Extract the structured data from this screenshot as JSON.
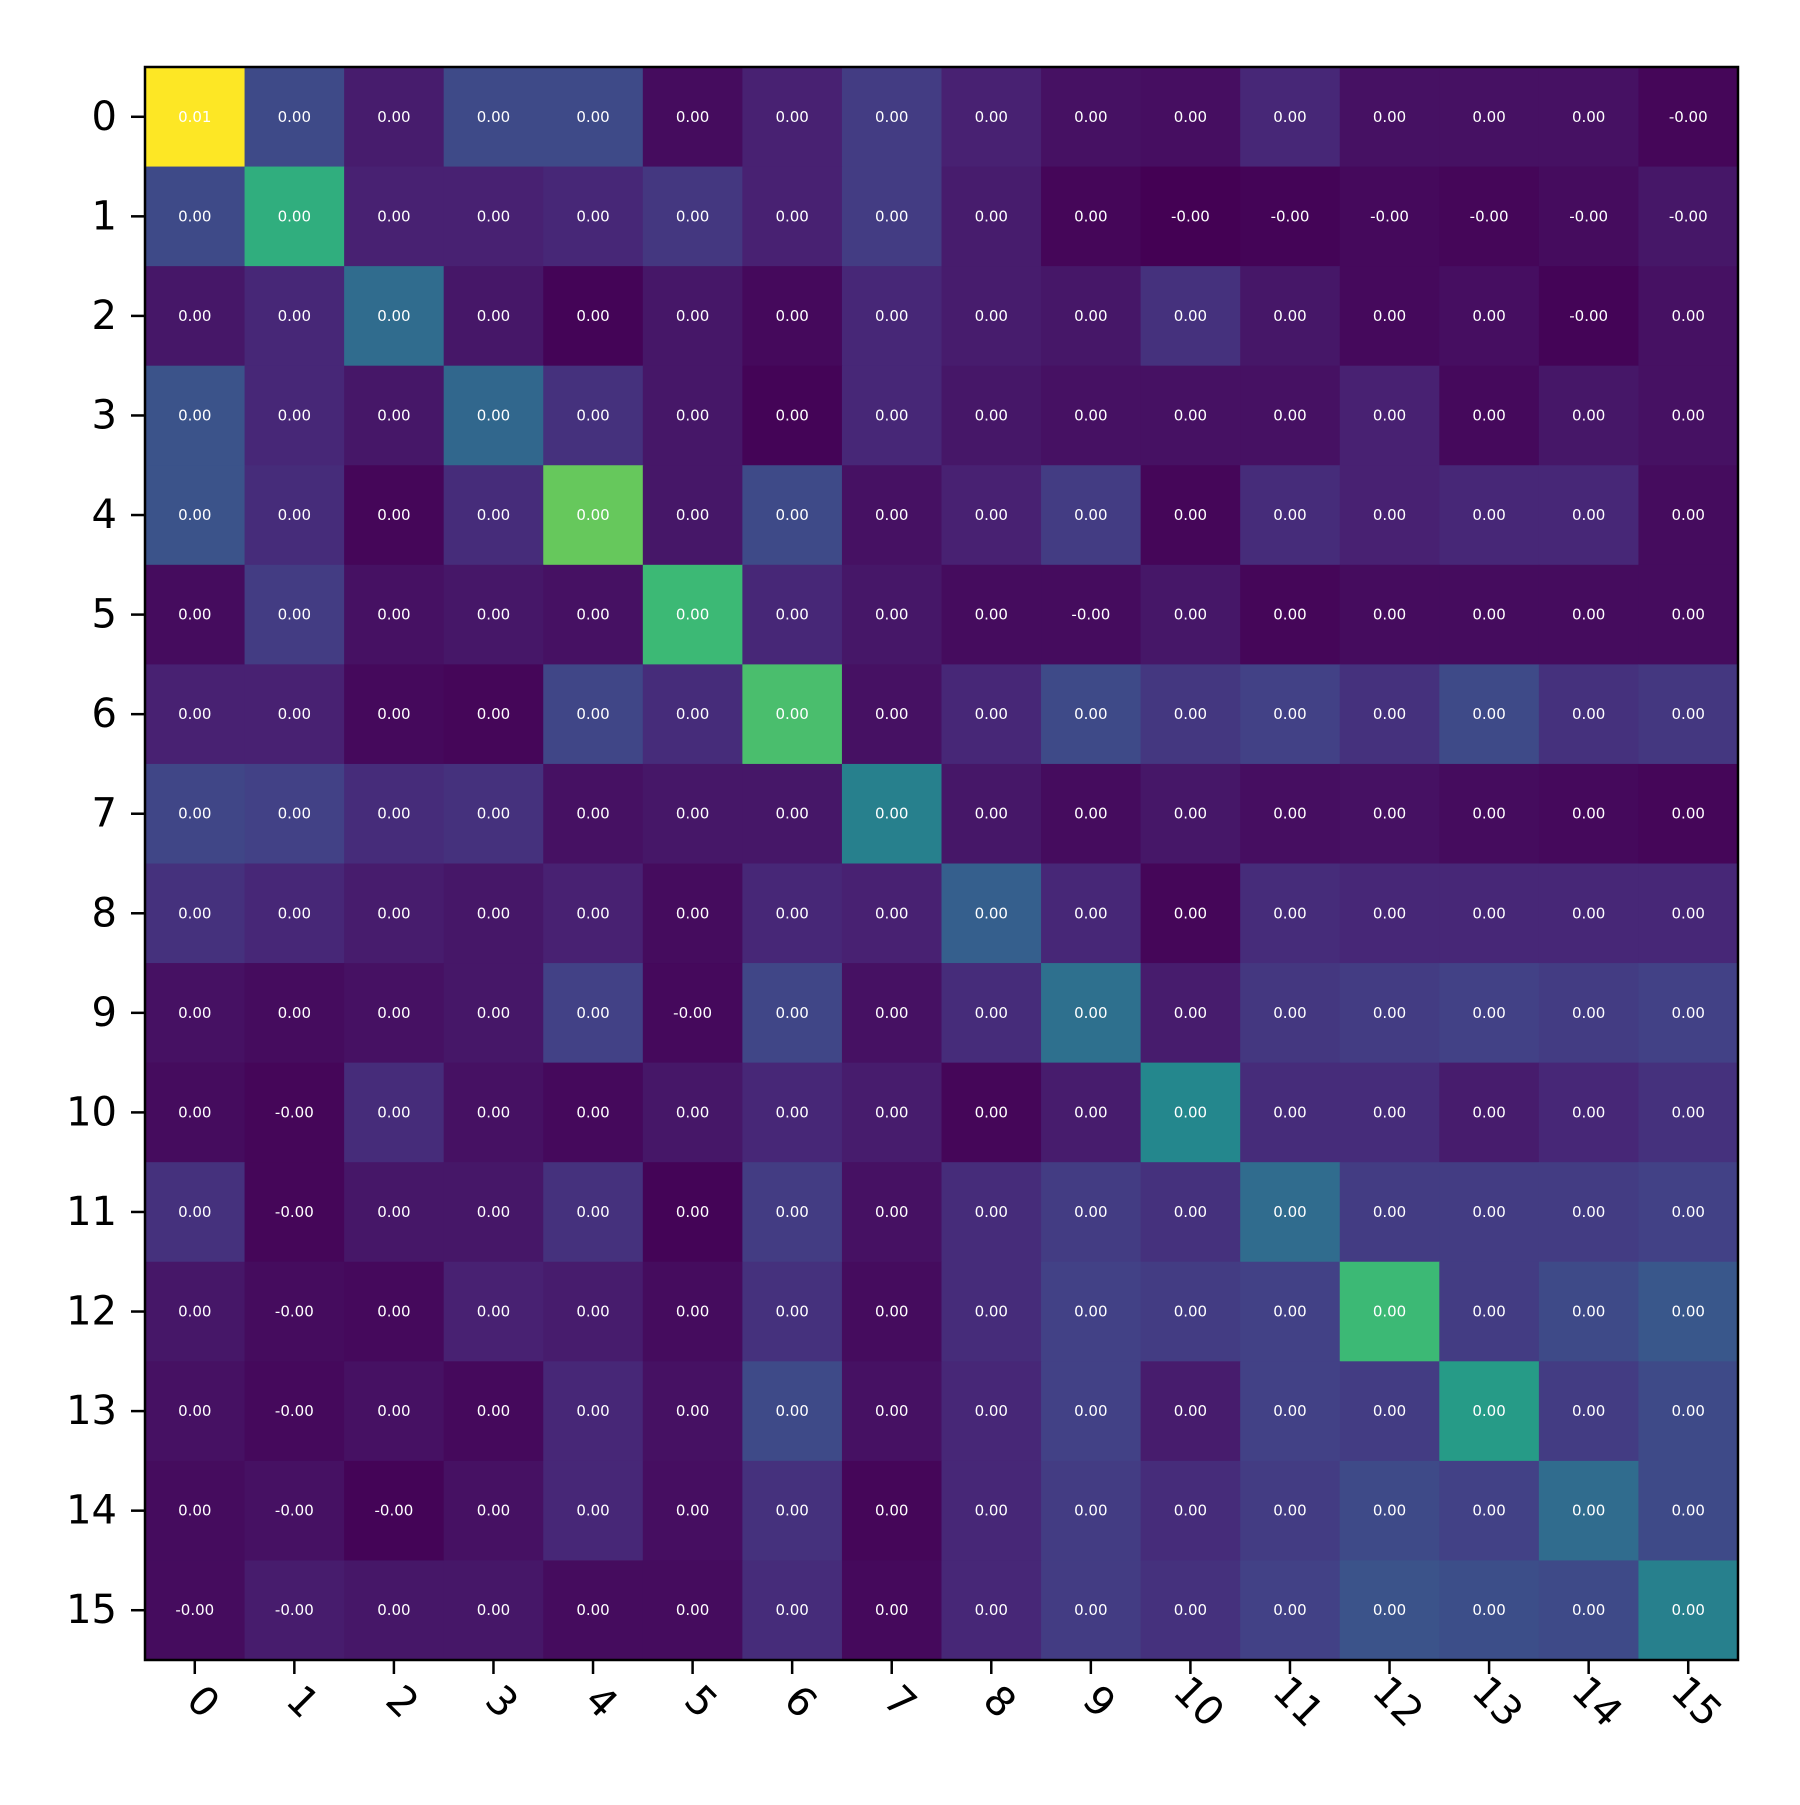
{
  "chart_data": {
    "type": "heatmap",
    "title": "",
    "xlabel": "",
    "ylabel": "",
    "x_tick_labels": [
      "0",
      "1",
      "2",
      "3",
      "4",
      "5",
      "6",
      "7",
      "8",
      "9",
      "10",
      "11",
      "12",
      "13",
      "14",
      "15"
    ],
    "y_tick_labels": [
      "0",
      "1",
      "2",
      "3",
      "4",
      "5",
      "6",
      "7",
      "8",
      "9",
      "10",
      "11",
      "12",
      "13",
      "14",
      "15"
    ],
    "x_tick_rotation_deg": 45,
    "colormap": "viridis",
    "colorbar": false,
    "value_range": [
      0,
      1
    ],
    "cell_text": [
      [
        "0.01",
        "0.00",
        "0.00",
        "0.00",
        "0.00",
        "0.00",
        "0.00",
        "0.00",
        "0.00",
        "0.00",
        "0.00",
        "0.00",
        "0.00",
        "0.00",
        "0.00",
        "-0.00"
      ],
      [
        "0.00",
        "0.00",
        "0.00",
        "0.00",
        "0.00",
        "0.00",
        "0.00",
        "0.00",
        "0.00",
        "0.00",
        "-0.00",
        "-0.00",
        "-0.00",
        "-0.00",
        "-0.00",
        "-0.00"
      ],
      [
        "0.00",
        "0.00",
        "0.00",
        "0.00",
        "0.00",
        "0.00",
        "0.00",
        "0.00",
        "0.00",
        "0.00",
        "0.00",
        "0.00",
        "0.00",
        "0.00",
        "-0.00",
        "0.00"
      ],
      [
        "0.00",
        "0.00",
        "0.00",
        "0.00",
        "0.00",
        "0.00",
        "0.00",
        "0.00",
        "0.00",
        "0.00",
        "0.00",
        "0.00",
        "0.00",
        "0.00",
        "0.00",
        "0.00"
      ],
      [
        "0.00",
        "0.00",
        "0.00",
        "0.00",
        "0.00",
        "0.00",
        "0.00",
        "0.00",
        "0.00",
        "0.00",
        "0.00",
        "0.00",
        "0.00",
        "0.00",
        "0.00",
        "0.00"
      ],
      [
        "0.00",
        "0.00",
        "0.00",
        "0.00",
        "0.00",
        "0.00",
        "0.00",
        "0.00",
        "0.00",
        "-0.00",
        "0.00",
        "0.00",
        "0.00",
        "0.00",
        "0.00",
        "0.00"
      ],
      [
        "0.00",
        "0.00",
        "0.00",
        "0.00",
        "0.00",
        "0.00",
        "0.00",
        "0.00",
        "0.00",
        "0.00",
        "0.00",
        "0.00",
        "0.00",
        "0.00",
        "0.00",
        "0.00"
      ],
      [
        "0.00",
        "0.00",
        "0.00",
        "0.00",
        "0.00",
        "0.00",
        "0.00",
        "0.00",
        "0.00",
        "0.00",
        "0.00",
        "0.00",
        "0.00",
        "0.00",
        "0.00",
        "0.00"
      ],
      [
        "0.00",
        "0.00",
        "0.00",
        "0.00",
        "0.00",
        "0.00",
        "0.00",
        "0.00",
        "0.00",
        "0.00",
        "0.00",
        "0.00",
        "0.00",
        "0.00",
        "0.00",
        "0.00"
      ],
      [
        "0.00",
        "0.00",
        "0.00",
        "0.00",
        "0.00",
        "-0.00",
        "0.00",
        "0.00",
        "0.00",
        "0.00",
        "0.00",
        "0.00",
        "0.00",
        "0.00",
        "0.00",
        "0.00"
      ],
      [
        "0.00",
        "-0.00",
        "0.00",
        "0.00",
        "0.00",
        "0.00",
        "0.00",
        "0.00",
        "0.00",
        "0.00",
        "0.00",
        "0.00",
        "0.00",
        "0.00",
        "0.00",
        "0.00"
      ],
      [
        "0.00",
        "-0.00",
        "0.00",
        "0.00",
        "0.00",
        "0.00",
        "0.00",
        "0.00",
        "0.00",
        "0.00",
        "0.00",
        "0.00",
        "0.00",
        "0.00",
        "0.00",
        "0.00"
      ],
      [
        "0.00",
        "-0.00",
        "0.00",
        "0.00",
        "0.00",
        "0.00",
        "0.00",
        "0.00",
        "0.00",
        "0.00",
        "0.00",
        "0.00",
        "0.00",
        "0.00",
        "0.00",
        "0.00"
      ],
      [
        "0.00",
        "-0.00",
        "0.00",
        "0.00",
        "0.00",
        "0.00",
        "0.00",
        "0.00",
        "0.00",
        "0.00",
        "0.00",
        "0.00",
        "0.00",
        "0.00",
        "0.00",
        "0.00"
      ],
      [
        "0.00",
        "-0.00",
        "-0.00",
        "0.00",
        "0.00",
        "0.00",
        "0.00",
        "0.00",
        "0.00",
        "0.00",
        "0.00",
        "0.00",
        "0.00",
        "0.00",
        "0.00",
        "0.00"
      ],
      [
        "-0.00",
        "-0.00",
        "0.00",
        "0.00",
        "0.00",
        "0.00",
        "0.00",
        "0.00",
        "0.00",
        "0.00",
        "0.00",
        "0.00",
        "0.00",
        "0.00",
        "0.00",
        "0.00"
      ]
    ],
    "color_intensity": [
      [
        1.0,
        0.28,
        0.1,
        0.28,
        0.28,
        0.04,
        0.12,
        0.22,
        0.12,
        0.06,
        0.05,
        0.14,
        0.06,
        0.06,
        0.06,
        0.02
      ],
      [
        0.28,
        0.72,
        0.12,
        0.12,
        0.14,
        0.2,
        0.12,
        0.22,
        0.1,
        0.02,
        0.0,
        0.01,
        0.03,
        0.02,
        0.04,
        0.08
      ],
      [
        0.08,
        0.14,
        0.44,
        0.08,
        0.01,
        0.08,
        0.03,
        0.14,
        0.1,
        0.08,
        0.18,
        0.08,
        0.03,
        0.05,
        0.01,
        0.06
      ],
      [
        0.32,
        0.14,
        0.08,
        0.42,
        0.18,
        0.08,
        0.01,
        0.14,
        0.08,
        0.06,
        0.06,
        0.06,
        0.12,
        0.03,
        0.08,
        0.06
      ],
      [
        0.32,
        0.16,
        0.02,
        0.16,
        0.82,
        0.08,
        0.28,
        0.06,
        0.12,
        0.22,
        0.02,
        0.16,
        0.12,
        0.14,
        0.14,
        0.04
      ],
      [
        0.04,
        0.22,
        0.06,
        0.08,
        0.06,
        0.76,
        0.14,
        0.08,
        0.04,
        0.04,
        0.08,
        0.02,
        0.04,
        0.04,
        0.04,
        0.04
      ],
      [
        0.12,
        0.12,
        0.03,
        0.02,
        0.26,
        0.16,
        0.78,
        0.06,
        0.14,
        0.28,
        0.2,
        0.24,
        0.18,
        0.28,
        0.18,
        0.2
      ],
      [
        0.26,
        0.24,
        0.16,
        0.18,
        0.06,
        0.08,
        0.08,
        0.54,
        0.08,
        0.04,
        0.08,
        0.05,
        0.06,
        0.04,
        0.03,
        0.02
      ],
      [
        0.18,
        0.14,
        0.1,
        0.08,
        0.12,
        0.04,
        0.14,
        0.12,
        0.38,
        0.14,
        0.02,
        0.16,
        0.14,
        0.14,
        0.14,
        0.14
      ],
      [
        0.06,
        0.04,
        0.06,
        0.08,
        0.24,
        0.03,
        0.26,
        0.06,
        0.16,
        0.46,
        0.1,
        0.2,
        0.22,
        0.24,
        0.22,
        0.24
      ],
      [
        0.04,
        0.02,
        0.16,
        0.06,
        0.03,
        0.08,
        0.14,
        0.1,
        0.02,
        0.1,
        0.58,
        0.16,
        0.16,
        0.1,
        0.14,
        0.18
      ],
      [
        0.18,
        0.02,
        0.08,
        0.08,
        0.18,
        0.01,
        0.22,
        0.06,
        0.16,
        0.22,
        0.18,
        0.44,
        0.22,
        0.22,
        0.22,
        0.24
      ],
      [
        0.08,
        0.04,
        0.03,
        0.12,
        0.1,
        0.04,
        0.18,
        0.04,
        0.16,
        0.24,
        0.22,
        0.24,
        0.76,
        0.22,
        0.28,
        0.34
      ],
      [
        0.06,
        0.03,
        0.06,
        0.03,
        0.14,
        0.06,
        0.28,
        0.06,
        0.14,
        0.24,
        0.1,
        0.24,
        0.22,
        0.66,
        0.22,
        0.28
      ],
      [
        0.04,
        0.06,
        0.01,
        0.06,
        0.14,
        0.05,
        0.18,
        0.02,
        0.14,
        0.22,
        0.16,
        0.22,
        0.28,
        0.24,
        0.44,
        0.28
      ],
      [
        0.04,
        0.1,
        0.08,
        0.08,
        0.04,
        0.04,
        0.16,
        0.03,
        0.14,
        0.22,
        0.18,
        0.24,
        0.32,
        0.3,
        0.28,
        0.54
      ]
    ],
    "cell_text_color": "#ffffff",
    "grid": false,
    "legend": "none"
  }
}
